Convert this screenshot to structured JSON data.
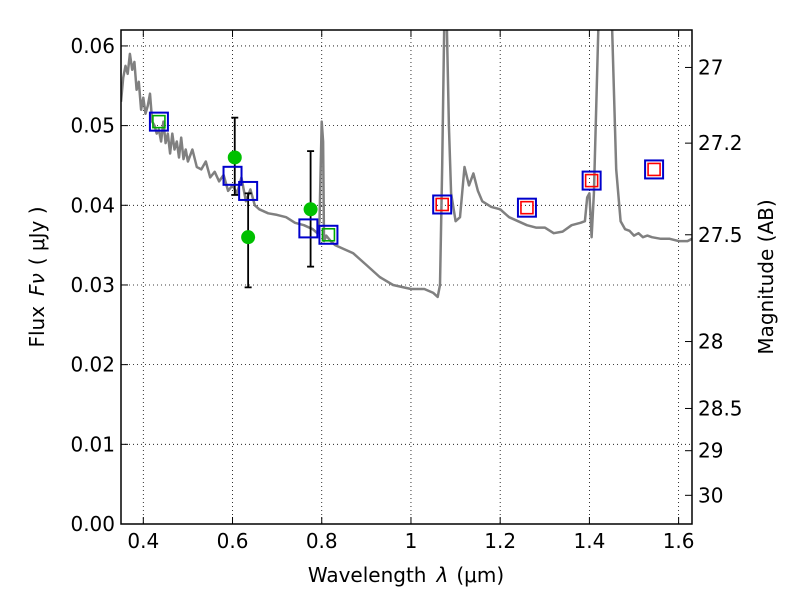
{
  "chart_data": {
    "type": "scatter",
    "title": "",
    "xlabel_prefix": "Wavelength",
    "xlabel_symbol": "λ",
    "xlabel_unit": "(μm)",
    "ylabel_prefix": "Flux",
    "ylabel_symbol": "Fν",
    "ylabel_unit": "( μJy )",
    "y2label": "Magnitude (AB)",
    "xlim": [
      0.35,
      1.63
    ],
    "ylim": [
      0.0,
      0.062
    ],
    "grid": true,
    "x_ticks": [
      0.4,
      0.6,
      0.8,
      1.0,
      1.2,
      1.4,
      1.6
    ],
    "x_tick_labels": [
      "0.4",
      "0.6",
      "0.8",
      "1",
      "1.2",
      "1.4",
      "1.6"
    ],
    "y_ticks": [
      0.0,
      0.01,
      0.02,
      0.03,
      0.04,
      0.05,
      0.06
    ],
    "y_tick_labels": [
      "0.00",
      "0.01",
      "0.02",
      "0.03",
      "0.04",
      "0.05",
      "0.06"
    ],
    "y2_ticks": [
      {
        "label": "27",
        "flux": 0.0573
      },
      {
        "label": "27.2",
        "flux": 0.0478
      },
      {
        "label": "27.5",
        "flux": 0.0363
      },
      {
        "label": "28",
        "flux": 0.0229
      },
      {
        "label": "28.5",
        "flux": 0.0145
      },
      {
        "label": "29",
        "flux": 0.0092
      },
      {
        "label": "30",
        "flux": 0.0036
      }
    ],
    "colors": {
      "sed": "#808080",
      "observed": "#00c000",
      "model_box": "#0000cc",
      "model_inner_green": "#00aa00",
      "model_inner_red": "#ff0000",
      "error_bar": "#000000"
    },
    "series": [
      {
        "kind": "sed_model_line",
        "x": [
          0.35,
          0.355,
          0.36,
          0.365,
          0.37,
          0.375,
          0.38,
          0.385,
          0.39,
          0.395,
          0.4,
          0.405,
          0.41,
          0.415,
          0.42,
          0.425,
          0.43,
          0.435,
          0.44,
          0.445,
          0.45,
          0.455,
          0.46,
          0.465,
          0.47,
          0.475,
          0.48,
          0.485,
          0.49,
          0.495,
          0.5,
          0.51,
          0.52,
          0.53,
          0.54,
          0.55,
          0.56,
          0.57,
          0.58,
          0.59,
          0.6,
          0.61,
          0.62,
          0.63,
          0.64,
          0.65,
          0.66,
          0.68,
          0.7,
          0.72,
          0.74,
          0.76,
          0.78,
          0.79,
          0.795,
          0.8,
          0.803,
          0.805,
          0.81,
          0.82,
          0.83,
          0.85,
          0.87,
          0.9,
          0.93,
          0.96,
          1.0,
          1.03,
          1.05,
          1.06,
          1.065,
          1.07,
          1.075,
          1.08,
          1.085,
          1.09,
          1.1,
          1.11,
          1.12,
          1.13,
          1.14,
          1.15,
          1.16,
          1.18,
          1.2,
          1.22,
          1.24,
          1.26,
          1.28,
          1.3,
          1.32,
          1.34,
          1.36,
          1.38,
          1.39,
          1.395,
          1.4,
          1.405,
          1.41,
          1.42,
          1.43,
          1.44,
          1.45,
          1.46,
          1.47,
          1.48,
          1.49,
          1.5,
          1.51,
          1.52,
          1.53,
          1.54,
          1.56,
          1.58,
          1.6,
          1.62,
          1.63
        ],
        "y": [
          0.053,
          0.056,
          0.0575,
          0.0565,
          0.059,
          0.057,
          0.058,
          0.0545,
          0.0555,
          0.052,
          0.0535,
          0.0515,
          0.0525,
          0.054,
          0.0505,
          0.05,
          0.049,
          0.0495,
          0.048,
          0.0505,
          0.0478,
          0.049,
          0.0465,
          0.049,
          0.047,
          0.048,
          0.046,
          0.0485,
          0.0458,
          0.047,
          0.0455,
          0.047,
          0.0448,
          0.0445,
          0.0455,
          0.0435,
          0.0442,
          0.043,
          0.0438,
          0.0418,
          0.0425,
          0.0415,
          0.0435,
          0.0405,
          0.042,
          0.04,
          0.0395,
          0.039,
          0.0388,
          0.0385,
          0.0378,
          0.0375,
          0.037,
          0.0365,
          0.038,
          0.0505,
          0.048,
          0.0355,
          0.0362,
          0.0355,
          0.035,
          0.0345,
          0.034,
          0.0325,
          0.031,
          0.03,
          0.0295,
          0.0295,
          0.029,
          0.0285,
          0.03,
          0.045,
          0.064,
          0.064,
          0.05,
          0.0415,
          0.038,
          0.0385,
          0.0448,
          0.0425,
          0.044,
          0.0418,
          0.0405,
          0.0398,
          0.0395,
          0.0385,
          0.038,
          0.0375,
          0.0372,
          0.0372,
          0.0365,
          0.0367,
          0.0375,
          0.0378,
          0.038,
          0.041,
          0.0415,
          0.036,
          0.0415,
          0.062,
          0.064,
          0.064,
          0.064,
          0.0445,
          0.038,
          0.037,
          0.0368,
          0.0362,
          0.0365,
          0.036,
          0.0362,
          0.036,
          0.0358,
          0.0358,
          0.0355,
          0.0355,
          0.0358
        ]
      },
      {
        "kind": "observed_points",
        "points": [
          {
            "x": 0.605,
            "y": 0.046
          },
          {
            "x": 0.635,
            "y": 0.036,
            "yerr_low": 0.0297,
            "yerr_high": 0.0415
          },
          {
            "x": 0.775,
            "y": 0.0395,
            "yerr_low": 0.0323,
            "yerr_high": 0.0468
          }
        ],
        "error_bar_extra": [
          {
            "x": 0.605,
            "yerr_low": 0.0413,
            "yerr_high": 0.051
          }
        ]
      },
      {
        "kind": "model_photometry_blue_squares",
        "points": [
          {
            "x": 0.435,
            "y": 0.0505,
            "inner": "green"
          },
          {
            "x": 0.6,
            "y": 0.0437,
            "inner": "none"
          },
          {
            "x": 0.635,
            "y": 0.0418,
            "inner": "none"
          },
          {
            "x": 0.77,
            "y": 0.0371,
            "inner": "none"
          },
          {
            "x": 0.815,
            "y": 0.0363,
            "inner": "green"
          },
          {
            "x": 1.07,
            "y": 0.0401,
            "inner": "red"
          },
          {
            "x": 1.26,
            "y": 0.0397,
            "inner": "red"
          },
          {
            "x": 1.405,
            "y": 0.0431,
            "inner": "red"
          },
          {
            "x": 1.545,
            "y": 0.0445,
            "inner": "red"
          }
        ]
      }
    ]
  }
}
